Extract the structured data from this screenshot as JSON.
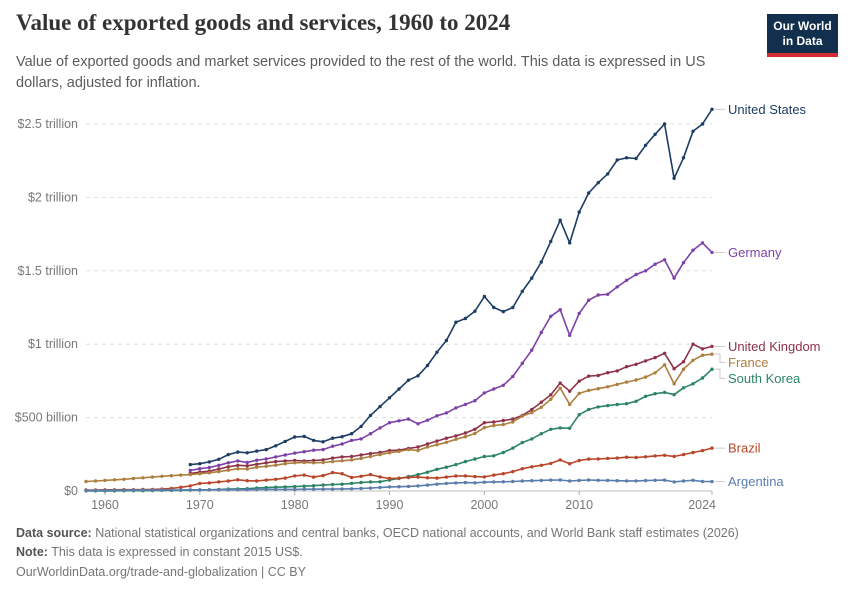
{
  "header": {
    "title": "Value of exported goods and services, 1960 to 2024",
    "subtitle": "Value of exported goods and market services provided to the rest of the world. This data is expressed in US dollars, adjusted for inflation.",
    "logo": {
      "line1": "Our World",
      "line2": "in Data"
    }
  },
  "chart_data": {
    "type": "line",
    "title": "Value of exported goods and services, 1960 to 2024",
    "unit": "constant 2015 US$ (billions)",
    "x_domain": [
      1958,
      2024
    ],
    "ylim_billions": [
      0,
      2500
    ],
    "grid": "dashed-horizontal",
    "legend_position": "right-of-line-ends",
    "x_ticks": [
      1960,
      1970,
      1980,
      1990,
      2000,
      2010,
      2024
    ],
    "y_ticks": [
      {
        "value": 0,
        "label": "$0"
      },
      {
        "value": 500,
        "label": "$500 billion"
      },
      {
        "value": 1000,
        "label": "$1 trillion"
      },
      {
        "value": 1500,
        "label": "$1.5 trillion"
      },
      {
        "value": 2000,
        "label": "$2 trillion"
      },
      {
        "value": 2500,
        "label": "$2.5 trillion"
      }
    ],
    "series": [
      {
        "name": "United States",
        "color": "#1d3d63",
        "start_year": 1969,
        "values_billions": [
          180,
          186,
          198,
          216,
          248,
          265,
          260,
          272,
          282,
          308,
          338,
          368,
          372,
          345,
          335,
          360,
          370,
          390,
          440,
          515,
          575,
          635,
          695,
          755,
          785,
          855,
          945,
          1025,
          1150,
          1175,
          1225,
          1325,
          1250,
          1222,
          1250,
          1360,
          1450,
          1560,
          1700,
          1845,
          1690,
          1900,
          2030,
          2100,
          2160,
          2255,
          2270,
          2265,
          2355,
          2430,
          2500,
          2130,
          2270,
          2450,
          2500,
          2600
        ]
      },
      {
        "name": "Germany",
        "color": "#7d42a8",
        "start_year": 1969,
        "values_billions": [
          140,
          152,
          160,
          175,
          192,
          205,
          194,
          210,
          218,
          232,
          245,
          258,
          268,
          278,
          282,
          305,
          320,
          345,
          355,
          390,
          430,
          465,
          478,
          490,
          458,
          482,
          512,
          532,
          566,
          590,
          615,
          668,
          695,
          720,
          780,
          870,
          960,
          1080,
          1190,
          1235,
          1060,
          1210,
          1300,
          1335,
          1340,
          1390,
          1435,
          1475,
          1500,
          1545,
          1575,
          1450,
          1555,
          1640,
          1690,
          1625
        ]
      },
      {
        "name": "United Kingdom",
        "color": "#8e3247",
        "start_year": 1969,
        "values_billions": [
          120,
          128,
          135,
          150,
          165,
          175,
          172,
          182,
          192,
          200,
          205,
          208,
          205,
          208,
          212,
          224,
          232,
          235,
          245,
          255,
          262,
          275,
          278,
          290,
          300,
          320,
          340,
          360,
          375,
          395,
          420,
          465,
          470,
          480,
          490,
          515,
          555,
          605,
          655,
          735,
          680,
          748,
          783,
          787,
          806,
          818,
          847,
          863,
          886,
          909,
          938,
          833,
          880,
          1000,
          968,
          985
        ]
      },
      {
        "name": "France",
        "color": "#ad7e3e",
        "start_year": 1958,
        "values_billions": [
          65,
          68,
          72,
          76,
          80,
          85,
          90,
          95,
          100,
          104,
          108,
          112,
          118,
          124,
          132,
          142,
          152,
          150,
          162,
          168,
          176,
          186,
          192,
          194,
          192,
          194,
          200,
          206,
          212,
          222,
          235,
          248,
          260,
          270,
          282,
          276,
          300,
          315,
          332,
          352,
          370,
          392,
          432,
          446,
          452,
          470,
          510,
          535,
          570,
          625,
          700,
          590,
          665,
          685,
          697,
          710,
          726,
          742,
          756,
          776,
          805,
          860,
          730,
          830,
          890,
          925,
          932
        ]
      },
      {
        "name": "South Korea",
        "color": "#2c8465",
        "start_year": 1958,
        "values_billions": [
          1,
          1,
          1,
          1,
          2,
          2,
          2,
          3,
          4,
          4,
          5,
          6,
          7,
          8,
          10,
          13,
          14,
          16,
          20,
          23,
          26,
          28,
          30,
          33,
          36,
          40,
          44,
          46,
          52,
          58,
          62,
          63,
          75,
          85,
          98,
          112,
          128,
          148,
          162,
          180,
          200,
          218,
          235,
          240,
          262,
          292,
          330,
          355,
          390,
          420,
          430,
          428,
          520,
          555,
          573,
          582,
          589,
          595,
          611,
          645,
          663,
          672,
          656,
          703,
          730,
          770,
          830
        ]
      },
      {
        "name": "Brazil",
        "color": "#b9452a",
        "start_year": 1958,
        "values_billions": [
          7,
          7,
          8,
          8,
          9,
          9,
          10,
          11,
          13,
          18,
          25,
          35,
          52,
          55,
          62,
          68,
          76,
          70,
          68,
          74,
          80,
          88,
          103,
          108,
          95,
          105,
          125,
          118,
          92,
          100,
          112,
          96,
          85,
          87,
          92,
          95,
          90,
          88,
          95,
          102,
          103,
          98,
          96,
          108,
          118,
          132,
          152,
          165,
          175,
          188,
          212,
          186,
          208,
          217,
          219,
          222,
          224,
          230,
          228,
          233,
          239,
          243,
          236,
          248,
          262,
          275,
          292
        ]
      },
      {
        "name": "Argentina",
        "color": "#5a7dac",
        "start_year": 1958,
        "values_billions": [
          4,
          4,
          5,
          5,
          5,
          6,
          6,
          6,
          7,
          7,
          7,
          8,
          8,
          8,
          9,
          9,
          9,
          9,
          10,
          11,
          11,
          11,
          11,
          12,
          12,
          13,
          13,
          14,
          15,
          17,
          20,
          24,
          28,
          29,
          31,
          35,
          40,
          46,
          52,
          55,
          57,
          56,
          60,
          62,
          63,
          65,
          68,
          70,
          72,
          74,
          75,
          68,
          72,
          75,
          73,
          72,
          70,
          69,
          69,
          71,
          73,
          74,
          62,
          68,
          73,
          65,
          64
        ]
      }
    ]
  },
  "footer": {
    "source_label": "Data source:",
    "source_text": " National statistical organizations and central banks, OECD national accounts, and World Bank staff estimates (2026)",
    "note_label": "Note:",
    "note_text": " This data is expressed in constant 2015 US$.",
    "url_line": "OurWorldinData.org/trade-and-globalization | CC BY"
  }
}
